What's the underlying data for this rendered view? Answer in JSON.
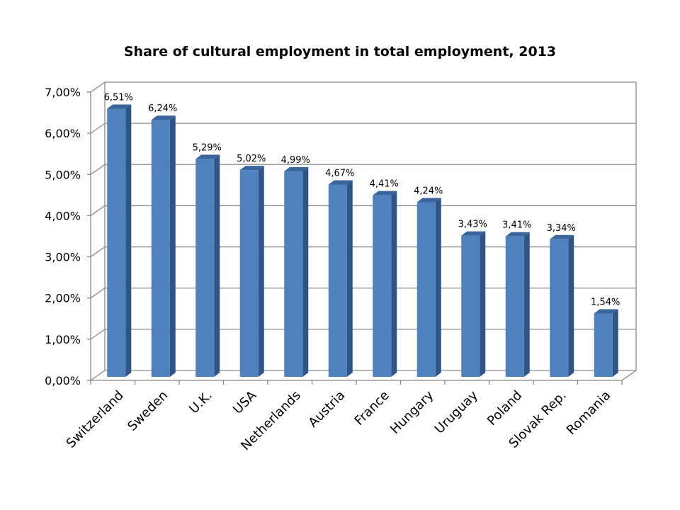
{
  "chart_data": {
    "type": "bar",
    "title": "Share of cultural employment in total employment, 2013",
    "categories": [
      "Switzerland",
      "Sweden",
      "U.K.",
      "USA",
      "Netherlands",
      "Austria",
      "France",
      "Hungary",
      "Uruguay",
      "Poland",
      "Slovak Rep.",
      "Romania"
    ],
    "values": [
      6.51,
      6.24,
      5.29,
      5.02,
      4.99,
      4.67,
      4.41,
      4.24,
      3.43,
      3.41,
      3.34,
      1.54
    ],
    "data_labels": [
      "6,51%",
      "6,24%",
      "5,29%",
      "5,02%",
      "4,99%",
      "4,67%",
      "4,41%",
      "4,24%",
      "3,43%",
      "3,41%",
      "3,34%",
      "1,54%"
    ],
    "y_ticks": [
      0,
      1,
      2,
      3,
      4,
      5,
      6,
      7
    ],
    "y_tick_labels": [
      "0,00%",
      "1,00%",
      "2,00%",
      "3,00%",
      "4,00%",
      "5,00%",
      "6,00%",
      "7,00%"
    ],
    "ylim": [
      0,
      7
    ],
    "xlabel": "",
    "ylabel": "",
    "grid": true,
    "legend": "none",
    "style": "3d-column",
    "colors": {
      "bar_front": "#4f81bd",
      "bar_side": "#2f5486",
      "bar_top": "#3a659c",
      "gridline": "#8c8c8c",
      "axis": "#868686"
    }
  }
}
